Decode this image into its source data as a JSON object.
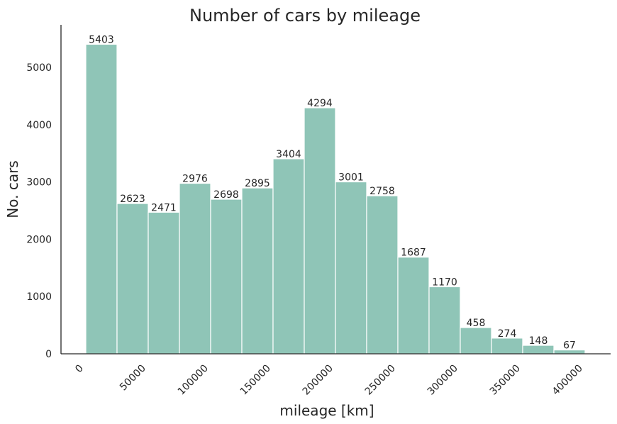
{
  "chart_data": {
    "type": "bar",
    "title": "Number of cars by mileage",
    "xlabel": "mileage [km]",
    "ylabel": "No. cars",
    "bin_width": 25000,
    "bins": [
      {
        "start": 0,
        "end": 25000,
        "value": 5403
      },
      {
        "start": 25000,
        "end": 50000,
        "value": 2623
      },
      {
        "start": 50000,
        "end": 75000,
        "value": 2471
      },
      {
        "start": 75000,
        "end": 100000,
        "value": 2976
      },
      {
        "start": 100000,
        "end": 125000,
        "value": 2698
      },
      {
        "start": 125000,
        "end": 150000,
        "value": 2895
      },
      {
        "start": 150000,
        "end": 175000,
        "value": 3404
      },
      {
        "start": 175000,
        "end": 200000,
        "value": 4294
      },
      {
        "start": 200000,
        "end": 225000,
        "value": 3001
      },
      {
        "start": 225000,
        "end": 250000,
        "value": 2758
      },
      {
        "start": 250000,
        "end": 275000,
        "value": 1687
      },
      {
        "start": 275000,
        "end": 300000,
        "value": 1170
      },
      {
        "start": 300000,
        "end": 325000,
        "value": 458
      },
      {
        "start": 325000,
        "end": 350000,
        "value": 274
      },
      {
        "start": 350000,
        "end": 375000,
        "value": 148
      },
      {
        "start": 375000,
        "end": 400000,
        "value": 67
      }
    ],
    "x_ticks": [
      0,
      50000,
      100000,
      150000,
      200000,
      250000,
      300000,
      350000,
      400000
    ],
    "y_ticks": [
      0,
      1000,
      2000,
      3000,
      4000,
      5000
    ],
    "ylim": [
      0,
      5700
    ],
    "grid": false,
    "bar_color": "#8fc5b7",
    "axis_color": "#262626"
  }
}
